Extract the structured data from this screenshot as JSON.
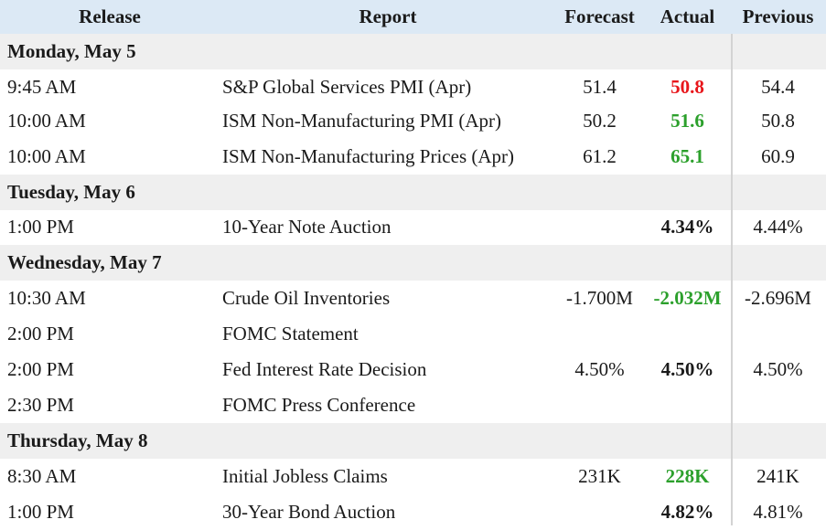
{
  "header": {
    "release": "Release",
    "report": "Report",
    "forecast": "Forecast",
    "actual": "Actual",
    "previous": "Previous"
  },
  "colors": {
    "header_bg": "#dce9f5",
    "day_bg": "#efefef",
    "miss_red": "#e8161b",
    "beat_green": "#2ca02c",
    "neutral_text": "#1a1a1a"
  },
  "days": [
    {
      "label": "Monday, May 5",
      "rows": [
        {
          "release": "9:45 AM",
          "report": "S&P Global Services PMI (Apr)",
          "forecast": "51.4",
          "actual": "50.8",
          "actual_status": "red",
          "previous": "54.4"
        },
        {
          "release": "10:00 AM",
          "report": "ISM Non-Manufacturing PMI (Apr)",
          "forecast": "50.2",
          "actual": "51.6",
          "actual_status": "green",
          "previous": "50.8"
        },
        {
          "release": "10:00 AM",
          "report": "ISM Non-Manufacturing Prices (Apr)",
          "forecast": "61.2",
          "actual": "65.1",
          "actual_status": "green",
          "previous": "60.9"
        }
      ]
    },
    {
      "label": "Tuesday, May 6",
      "rows": [
        {
          "release": "1:00 PM",
          "report": "10-Year Note Auction",
          "forecast": "",
          "actual": "4.34%",
          "actual_status": "neutral",
          "previous": "4.44%"
        }
      ]
    },
    {
      "label": "Wednesday, May 7",
      "rows": [
        {
          "release": "10:30 AM",
          "report": "Crude Oil Inventories",
          "forecast": "-1.700M",
          "actual": "-2.032M",
          "actual_status": "green",
          "previous": "-2.696M"
        },
        {
          "release": "2:00 PM",
          "report": "FOMC Statement",
          "forecast": "",
          "actual": "",
          "actual_status": "neutral",
          "previous": ""
        },
        {
          "release": "2:00 PM",
          "report": "Fed Interest Rate Decision",
          "forecast": "4.50%",
          "actual": "4.50%",
          "actual_status": "neutral",
          "previous": "4.50%"
        },
        {
          "release": "2:30 PM",
          "report": "FOMC Press Conference",
          "forecast": "",
          "actual": "",
          "actual_status": "neutral",
          "previous": ""
        }
      ]
    },
    {
      "label": "Thursday, May 8",
      "rows": [
        {
          "release": "8:30 AM",
          "report": "Initial Jobless Claims",
          "forecast": "231K",
          "actual": "228K",
          "actual_status": "green",
          "previous": "241K"
        },
        {
          "release": "1:00 PM",
          "report": "30-Year Bond Auction",
          "forecast": "",
          "actual": "4.82%",
          "actual_status": "neutral",
          "previous": "4.81%"
        }
      ]
    }
  ]
}
